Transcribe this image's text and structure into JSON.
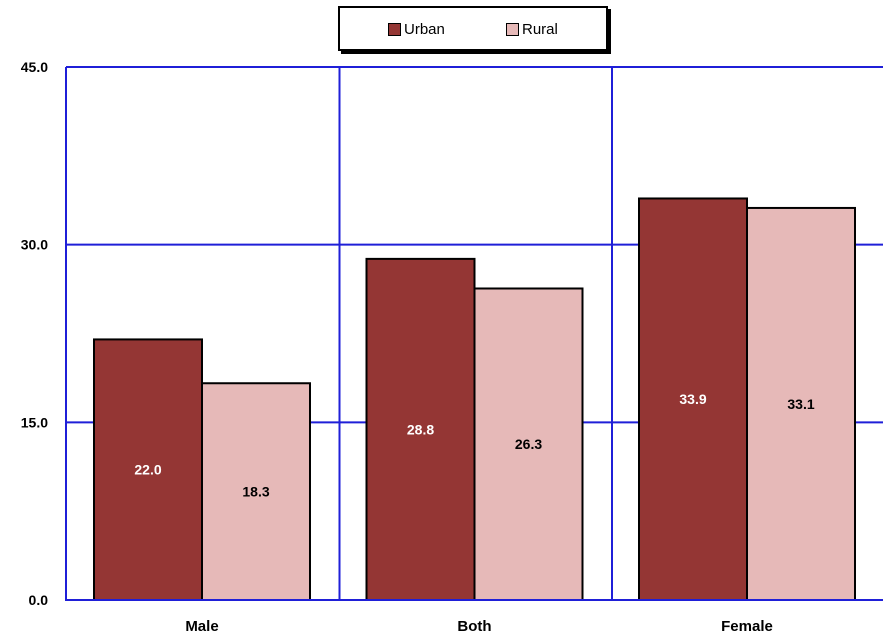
{
  "chart_data": {
    "type": "bar",
    "categories": [
      "Male",
      "Both",
      "Female"
    ],
    "series": [
      {
        "name": "Urban",
        "values": [
          22.0,
          28.8,
          33.9
        ],
        "color": "#943634",
        "label_color": "#ffffff"
      },
      {
        "name": "Rural",
        "values": [
          18.3,
          26.3,
          33.1
        ],
        "color": "#e6b9b8",
        "label_color": "#000000"
      }
    ],
    "data_labels": [
      [
        "22.0",
        "28.8",
        "33.9"
      ],
      [
        "18.3",
        "26.3",
        "33.1"
      ]
    ],
    "y_ticks": [
      "0.0",
      "15.0",
      "30.0",
      "45.0"
    ],
    "y_tick_values": [
      0,
      15,
      30,
      45
    ],
    "ylim": [
      0,
      45
    ],
    "grid": true,
    "grid_color": "#1f1fd8",
    "legend_position": "top-center",
    "title": "",
    "xlabel": "",
    "ylabel": ""
  }
}
